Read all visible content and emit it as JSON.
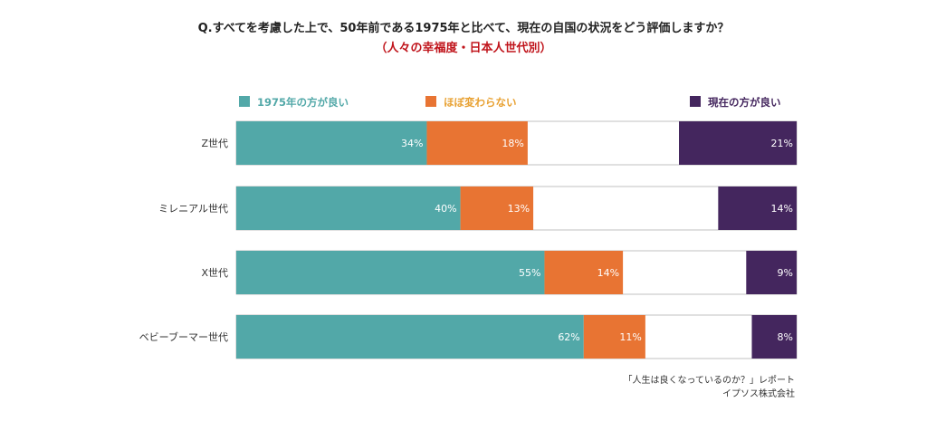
{
  "title": "Q.すべてを考慮した上で、50年前である1975年と比べて、現在の自国の状況をどう評価しますか？",
  "subtitle": "（人々の幸福度・日本人世代別）",
  "source": [
    "「人生は良くなっているのか？」レポート",
    "イプソス株式会社"
  ],
  "chart_data": {
    "type": "bar",
    "orientation": "horizontal",
    "stacked": true,
    "xlim": [
      0,
      100
    ],
    "grid": false,
    "legend_position": "top",
    "categories": [
      "Z世代",
      "ミレニアル世代",
      "X世代",
      "ベビーブーマー世代"
    ],
    "series": [
      {
        "name": "1975年の方が良い",
        "color": "#52a8a8",
        "values": [
          34,
          40,
          55,
          62
        ],
        "labels": [
          "34%",
          "40%",
          "55%",
          "62%"
        ],
        "align": "left"
      },
      {
        "name": "ほぼ変わらない",
        "color": "#e87433",
        "values": [
          18,
          13,
          14,
          11
        ],
        "labels": [
          "18%",
          "13%",
          "14%",
          "11%"
        ],
        "align": "left"
      },
      {
        "name": "現在の方が良い",
        "color": "#44265e",
        "values": [
          21,
          14,
          9,
          8
        ],
        "labels": [
          "21%",
          "14%",
          "9%",
          "8%"
        ],
        "align": "right"
      }
    ]
  }
}
